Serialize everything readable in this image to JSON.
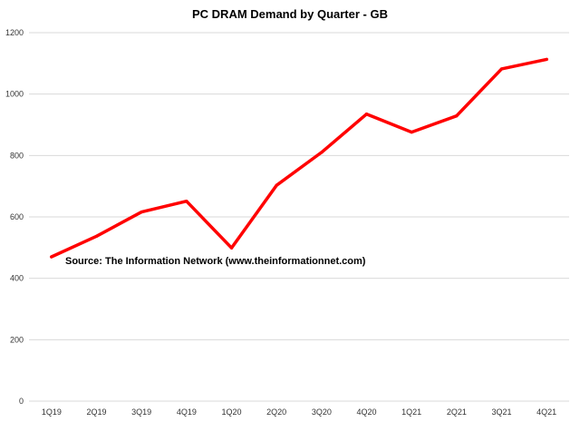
{
  "chart_data": {
    "type": "line",
    "title": "PC DRAM Demand by Quarter - GB",
    "xlabel": "",
    "ylabel": "",
    "categories": [
      "1Q19",
      "2Q19",
      "3Q19",
      "4Q19",
      "1Q20",
      "2Q20",
      "3Q20",
      "4Q20",
      "1Q21",
      "2Q21",
      "3Q21",
      "4Q21"
    ],
    "series": [
      {
        "values": [
          470,
          537,
          616,
          651,
          499,
          703,
          810,
          935,
          876,
          929,
          1082,
          1113
        ],
        "color": "#ff0000"
      }
    ],
    "ylim": [
      0,
      1200
    ],
    "yticks": [
      0,
      200,
      400,
      600,
      800,
      1000,
      1200
    ],
    "grid": true,
    "legend": "none",
    "annotation": "Source: The Information Network (www.theinformationnet.com)"
  }
}
